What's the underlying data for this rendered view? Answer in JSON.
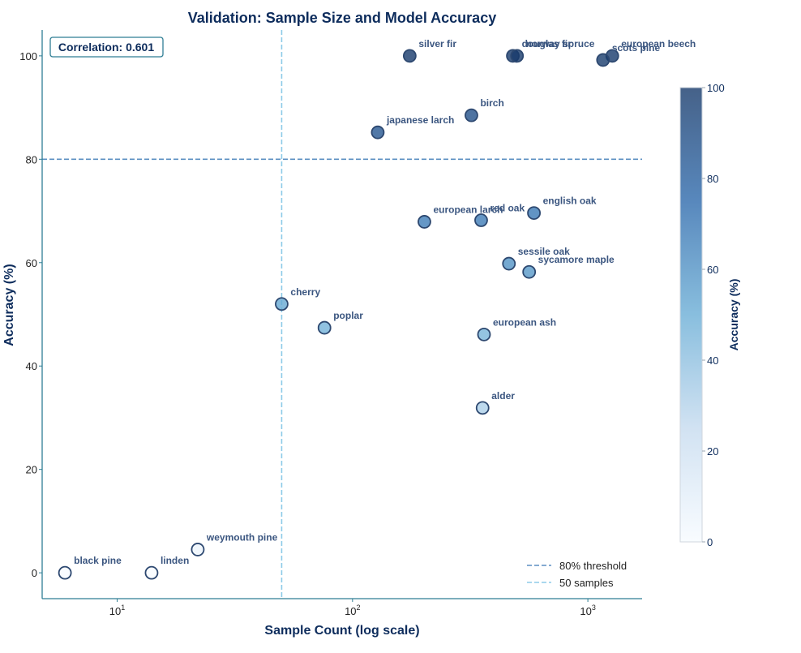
{
  "colors": {
    "title": "#0d2c5c",
    "axis": "#2f7e94",
    "label_text": "#3b5680",
    "threshold_line": "#5b8fc2",
    "sample_line": "#8ecbe8",
    "marker_edge": "#2d4870",
    "colormap": [
      "#f7fbff",
      "#c6dbef",
      "#6baed6",
      "#2e6aac",
      "#173a6b"
    ]
  },
  "chart_data": {
    "type": "scatter",
    "title": "Validation: Sample Size and Model Accuracy",
    "xlabel": "Sample Count (log scale)",
    "ylabel": "Accuracy (%)",
    "xscale": "log",
    "xlim": [
      4.8,
      1700
    ],
    "ylim": [
      -5,
      105
    ],
    "xticks": [
      {
        "value": 10,
        "base": "10",
        "exp": "1"
      },
      {
        "value": 100,
        "base": "10",
        "exp": "2"
      },
      {
        "value": 1000,
        "base": "10",
        "exp": "3"
      }
    ],
    "yticks": [
      0,
      20,
      40,
      60,
      80,
      100
    ],
    "grid": false,
    "annotation": "Correlation: 0.601",
    "reference_lines": [
      {
        "orientation": "horizontal",
        "value": 80,
        "label": "80% threshold"
      },
      {
        "orientation": "vertical",
        "value": 50,
        "label": "50 samples"
      }
    ],
    "legend_position": "bottom-right",
    "colorbar": {
      "label": "Accuracy (%)",
      "min": 0,
      "max": 100,
      "ticks": [
        0,
        20,
        40,
        60,
        80,
        100
      ]
    },
    "points": [
      {
        "label": "silver fir",
        "x": 175,
        "y": 100
      },
      {
        "label": "douglas fir",
        "x": 480,
        "y": 100
      },
      {
        "label": "norway spruce",
        "x": 500,
        "y": 100
      },
      {
        "label": "european beech",
        "x": 1270,
        "y": 100
      },
      {
        "label": "scots pine",
        "x": 1160,
        "y": 99.2
      },
      {
        "label": "birch",
        "x": 320,
        "y": 88.5
      },
      {
        "label": "japanese larch",
        "x": 128,
        "y": 85.2
      },
      {
        "label": "european larch",
        "x": 202,
        "y": 67.9
      },
      {
        "label": "red oak",
        "x": 352,
        "y": 68.2
      },
      {
        "label": "english oak",
        "x": 590,
        "y": 69.6
      },
      {
        "label": "sessile oak",
        "x": 462,
        "y": 59.8
      },
      {
        "label": "sycamore maple",
        "x": 563,
        "y": 58.2
      },
      {
        "label": "cherry",
        "x": 50,
        "y": 52
      },
      {
        "label": "poplar",
        "x": 76,
        "y": 47.4
      },
      {
        "label": "european ash",
        "x": 362,
        "y": 46.1
      },
      {
        "label": "alder",
        "x": 357,
        "y": 31.9
      },
      {
        "label": "weymouth pine",
        "x": 22,
        "y": 4.5
      },
      {
        "label": "black pine",
        "x": 6,
        "y": 0
      },
      {
        "label": "linden",
        "x": 14,
        "y": 0
      }
    ]
  }
}
